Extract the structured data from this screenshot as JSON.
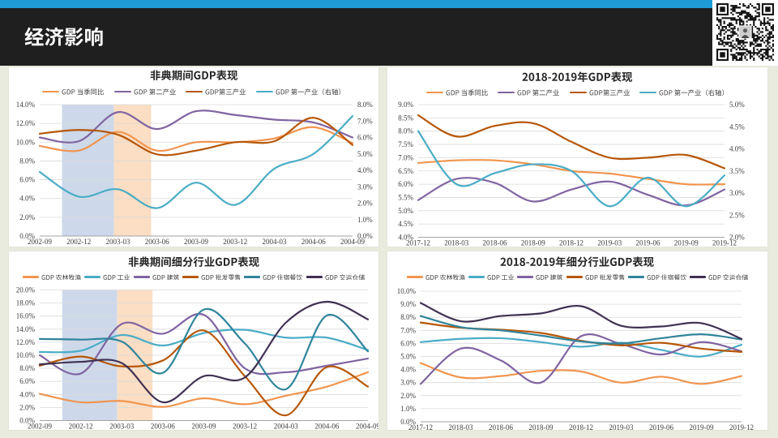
{
  "slide": {
    "accent_color": "#1E9CD8",
    "background": "#E9EBDF",
    "header": {
      "title": "经济影响",
      "bg": "#1F1F1F",
      "text_color": "#FFFFFF"
    },
    "qr_icon": "wechat-qr-code"
  },
  "chart_data": [
    {
      "type": "line",
      "title": "非典期间GDP表现",
      "categories": [
        "2002-09",
        "2002-12",
        "2003-03",
        "2003-06",
        "2003-09",
        "2003-12",
        "2004-03",
        "2004-06",
        "2004-09"
      ],
      "y_axis": {
        "min": 0,
        "max": 14,
        "ticks": [
          "14.0%",
          "12.0%",
          "10.0%",
          "8.0%",
          "6.0%",
          "4.0%",
          "2.0%",
          "0.0%"
        ]
      },
      "y2_axis": {
        "min": 0,
        "max": 8,
        "ticks": [
          "8.0%",
          "7.0%",
          "6.0%",
          "5.0%",
          "4.0%",
          "3.0%",
          "2.0%",
          "1.0%",
          "0.0%"
        ]
      },
      "grid": true,
      "legend_position": "top",
      "bands": [
        {
          "from": 0.57,
          "to": 1.9,
          "color": "#CDD9EA"
        },
        {
          "from": 1.9,
          "to": 2.85,
          "color": "#FBDEC3"
        }
      ],
      "series": [
        {
          "name": "GDP 当季同比",
          "color": "#F0954F",
          "axis": "left",
          "values": [
            9.6,
            9.1,
            11.1,
            9.1,
            10.0,
            10.0,
            10.4,
            11.6,
            9.9
          ]
        },
        {
          "name": "GDP 第二产业",
          "color": "#8064A2",
          "axis": "left",
          "values": [
            10.5,
            10.1,
            13.2,
            11.4,
            13.3,
            12.9,
            12.4,
            12.1,
            10.5
          ]
        },
        {
          "name": "GDP第三产业",
          "color": "#B65708",
          "axis": "left",
          "values": [
            10.9,
            11.3,
            10.8,
            8.7,
            9.1,
            10.0,
            10.1,
            12.6,
            9.7
          ]
        },
        {
          "name": "GDP 第一产业（右轴）",
          "color": "#4BACC6",
          "axis": "right",
          "values": [
            3.9,
            2.4,
            2.85,
            1.7,
            3.25,
            1.9,
            4.1,
            5.0,
            7.3
          ]
        }
      ]
    },
    {
      "type": "line",
      "title": "2018-2019年GDP表现",
      "categories": [
        "2017-12",
        "2018-03",
        "2018-06",
        "2018-09",
        "2018-12",
        "2019-03",
        "2019-06",
        "2019-09",
        "2019-12"
      ],
      "y_axis": {
        "min": 4,
        "max": 9,
        "ticks": [
          "9.0%",
          "8.5%",
          "8.0%",
          "7.5%",
          "7.0%",
          "6.5%",
          "6.0%",
          "5.5%",
          "5.0%",
          "4.5%",
          "4.0%"
        ]
      },
      "y2_axis": {
        "min": 2,
        "max": 5,
        "ticks": [
          "5.0%",
          "4.5%",
          "4.0%",
          "3.5%",
          "3.0%",
          "2.5%",
          "2.0%"
        ]
      },
      "grid": true,
      "legend_position": "top",
      "bands": [],
      "series": [
        {
          "name": "GDP 当季同比",
          "color": "#F0954F",
          "axis": "left",
          "values": [
            6.8,
            6.9,
            6.9,
            6.75,
            6.5,
            6.4,
            6.2,
            6.0,
            6.0
          ]
        },
        {
          "name": "GDP 第二产业",
          "color": "#8064A2",
          "axis": "left",
          "values": [
            5.4,
            6.2,
            6.05,
            5.35,
            5.8,
            6.1,
            5.6,
            5.2,
            5.8
          ]
        },
        {
          "name": "GDP第三产业",
          "color": "#B65708",
          "axis": "left",
          "values": [
            8.6,
            7.8,
            8.2,
            8.3,
            7.6,
            7.0,
            7.0,
            7.1,
            6.6
          ]
        },
        {
          "name": "GDP 第一产业（右轴）",
          "color": "#4BACC6",
          "axis": "right",
          "values": [
            4.4,
            3.2,
            3.45,
            3.65,
            3.5,
            2.7,
            3.35,
            2.7,
            3.4
          ]
        }
      ]
    },
    {
      "type": "line",
      "title": "非典期间细分行业GDP表现",
      "categories": [
        "2002-09",
        "2002-12",
        "2003-03",
        "2003-06",
        "2003-09",
        "2003-12",
        "2004-03",
        "2004-06",
        "2004-09"
      ],
      "y_axis": {
        "min": 0,
        "max": 20,
        "ticks": [
          "20.0%",
          "18.0%",
          "16.0%",
          "14.0%",
          "12.0%",
          "10.0%",
          "8.0%",
          "6.0%",
          "4.0%",
          "2.0%",
          "0.0%"
        ]
      },
      "y2_axis": null,
      "grid": true,
      "legend_position": "top",
      "bands": [
        {
          "from": 0.55,
          "to": 1.89,
          "color": "#CDD9EA"
        },
        {
          "from": 1.89,
          "to": 2.75,
          "color": "#FBDEC3"
        }
      ],
      "series": [
        {
          "name": "GDP 农林牧渔",
          "color": "#F0954F",
          "axis": "left",
          "values": [
            4.1,
            2.8,
            3.0,
            2.1,
            3.4,
            2.5,
            3.8,
            5.2,
            7.4
          ]
        },
        {
          "name": "GDP 工业",
          "color": "#4BACC6",
          "axis": "left",
          "values": [
            10.5,
            10.7,
            13.1,
            11.5,
            13.4,
            13.9,
            12.7,
            12.7,
            10.8
          ]
        },
        {
          "name": "GDP 建筑",
          "color": "#8064A2",
          "axis": "left",
          "values": [
            10.0,
            7.2,
            14.8,
            13.3,
            16.2,
            8.0,
            7.4,
            8.4,
            9.5
          ]
        },
        {
          "name": "GDP 批发零售",
          "color": "#B65708",
          "axis": "left",
          "values": [
            8.4,
            9.8,
            8.3,
            9.2,
            13.8,
            6.8,
            0.8,
            8.2,
            5.2
          ]
        },
        {
          "name": "GDP 住宿餐饮",
          "color": "#31849B",
          "axis": "left",
          "values": [
            12.5,
            12.4,
            12.1,
            7.3,
            17.0,
            11.8,
            4.8,
            16.1,
            10.6
          ]
        },
        {
          "name": "GDP 交运仓储",
          "color": "#403152",
          "axis": "left",
          "values": [
            8.6,
            9.0,
            8.8,
            2.8,
            6.8,
            6.6,
            15.0,
            18.2,
            15.5
          ]
        }
      ]
    },
    {
      "type": "line",
      "title": "2018-2019年细分行业GDP表现",
      "categories": [
        "2017-12",
        "2018-03",
        "2018-06",
        "2018-09",
        "2018-12",
        "2019-03",
        "2019-06",
        "2019-09",
        "2019-12"
      ],
      "y_axis": {
        "min": 0,
        "max": 10,
        "ticks": [
          "10.0%",
          "9.0%",
          "8.0%",
          "7.0%",
          "6.0%",
          "5.0%",
          "4.0%",
          "3.0%",
          "2.0%",
          "1.0%",
          "0.0%"
        ]
      },
      "y2_axis": null,
      "grid": true,
      "legend_position": "top",
      "bands": [],
      "series": [
        {
          "name": "GDP 农林牧渔",
          "color": "#F0954F",
          "axis": "left",
          "values": [
            4.5,
            3.4,
            3.5,
            3.9,
            3.85,
            3.0,
            3.45,
            2.9,
            3.5
          ]
        },
        {
          "name": "GDP 工业",
          "color": "#4BACC6",
          "axis": "left",
          "values": [
            6.1,
            6.35,
            6.4,
            6.1,
            5.75,
            6.05,
            5.5,
            5.0,
            5.9
          ]
        },
        {
          "name": "GDP 建筑",
          "color": "#8064A2",
          "axis": "left",
          "values": [
            2.9,
            5.6,
            4.7,
            3.0,
            6.55,
            5.95,
            5.15,
            6.1,
            5.4
          ]
        },
        {
          "name": "GDP 批发零售",
          "color": "#B65708",
          "axis": "left",
          "values": [
            7.6,
            7.2,
            7.05,
            6.8,
            6.2,
            5.85,
            6.05,
            5.6,
            5.35
          ]
        },
        {
          "name": "GDP 住宿餐饮",
          "color": "#31849B",
          "axis": "left",
          "values": [
            8.1,
            7.25,
            7.0,
            6.6,
            6.15,
            6.0,
            6.4,
            6.7,
            6.3
          ]
        },
        {
          "name": "GDP 交运仓储",
          "color": "#403152",
          "axis": "left",
          "values": [
            9.1,
            7.7,
            8.1,
            8.3,
            8.85,
            7.35,
            7.3,
            7.55,
            6.35
          ]
        }
      ]
    }
  ]
}
